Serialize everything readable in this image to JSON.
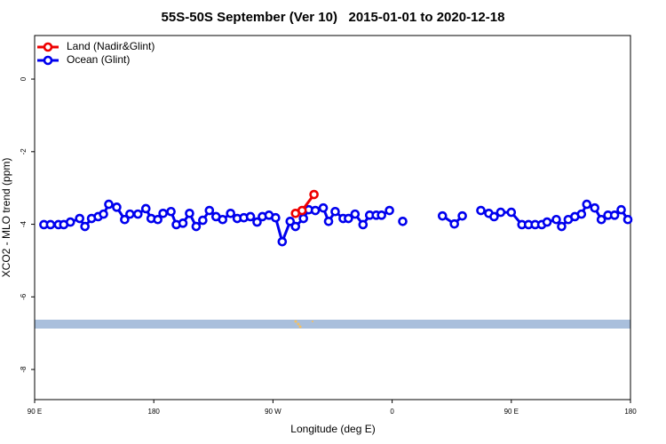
{
  "chart_data": {
    "type": "line",
    "title": "55S-50S September (Ver 10)   2015-01-01 to 2020-12-18",
    "x_label": "Longitude (deg E)",
    "y_label": "XCO2 - MLO trend (ppm)",
    "xlim": [
      90,
      540
    ],
    "xticks": [
      {
        "value": 90,
        "label": "90 E"
      },
      180,
      {
        "value": 270,
        "label": "90 W"
      },
      {
        "value": 360,
        "label": "0"
      },
      {
        "value": 450,
        "label": "90 E"
      },
      {
        "value": 540,
        "label": "180"
      }
    ],
    "ylim": [
      -8.83,
      1.2
    ],
    "yticks": [
      0,
      -2,
      -4,
      -6,
      -8
    ],
    "legend": "top-left",
    "series": [
      {
        "name": "Land (Nadir&Glint)",
        "color": "#ee0000",
        "x": [
          287,
          292,
          301
        ],
        "values": [
          -3.7,
          -3.62,
          -3.18
        ]
      },
      {
        "name": "Ocean (Glint)",
        "color": "#0000ee",
        "x": [
          97,
          102,
          108,
          112,
          117,
          124,
          128,
          133,
          138,
          142,
          146,
          152,
          158,
          162,
          168,
          174,
          178,
          183,
          187,
          193,
          197,
          202,
          207,
          212,
          217,
          222,
          227,
          232,
          238,
          243,
          248,
          253,
          258,
          262,
          267,
          272,
          277,
          283,
          287,
          293,
          297,
          302,
          308,
          312,
          317,
          323,
          327,
          332,
          338,
          343,
          348,
          352,
          358,
          362,
          368,
          383,
          398,
          407,
          413,
          420,
          427,
          433,
          437,
          442,
          450,
          458,
          463,
          468,
          473,
          477,
          484,
          488,
          493,
          498,
          503,
          507,
          513,
          518,
          523,
          528,
          533,
          538
        ],
        "values": [
          -4.01,
          -4.01,
          -4.01,
          -4.01,
          -3.94,
          -3.84,
          -4.06,
          -3.84,
          -3.79,
          -3.72,
          -3.45,
          -3.53,
          -3.87,
          -3.72,
          -3.72,
          -3.57,
          -3.84,
          -3.87,
          -3.7,
          -3.65,
          -4.01,
          -3.97,
          -3.7,
          -4.06,
          -3.89,
          -3.62,
          -3.79,
          -3.87,
          -3.7,
          -3.84,
          -3.82,
          -3.79,
          -3.94,
          -3.79,
          -3.75,
          -3.82,
          -4.48,
          -3.92,
          -4.06,
          -3.84,
          -3.6,
          -3.62,
          -3.55,
          -3.92,
          -3.65,
          -3.84,
          -3.84,
          -3.72,
          -4.01,
          -3.75,
          -3.75,
          -3.75,
          -3.62,
          null,
          -3.92,
          null,
          -3.77,
          -3.99,
          -3.77,
          null,
          -3.62,
          -3.7,
          -3.79,
          -3.67,
          -3.67,
          -4.01,
          -4.01,
          -4.01,
          -4.01,
          -3.94,
          -3.87,
          -4.06,
          -3.87,
          -3.79,
          -3.72,
          -3.45,
          -3.55,
          -3.87,
          -3.75,
          -3.75,
          -3.6,
          -3.87
        ]
      }
    ]
  }
}
